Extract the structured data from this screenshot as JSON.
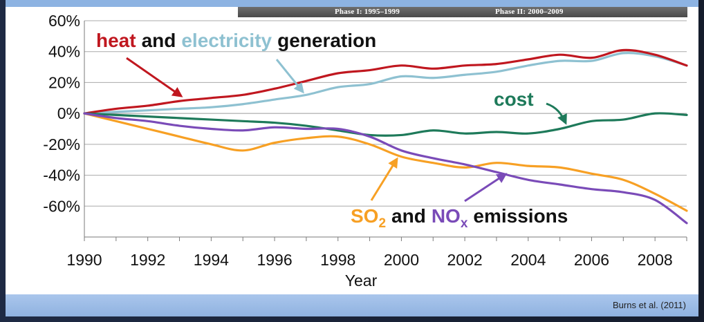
{
  "citation": "Burns et al. (2011)",
  "phases": [
    {
      "label": "Phase I: 1995–1999"
    },
    {
      "label": "Phase II: 2000–2009"
    }
  ],
  "chart_data": {
    "type": "line",
    "title": "",
    "xlabel": "Year",
    "ylabel": "",
    "xlim": [
      1990,
      2009
    ],
    "ylim": [
      -80,
      60
    ],
    "grid": true,
    "x_ticks": [
      1990,
      1992,
      1994,
      1996,
      1998,
      2000,
      2002,
      2004,
      2006,
      2008
    ],
    "x_tick_labels": [
      "1990",
      "1992",
      "1994",
      "1996",
      "1998",
      "2000",
      "2002",
      "2004",
      "2006",
      "2008"
    ],
    "y_ticks": [
      60,
      40,
      20,
      0,
      -20,
      -40,
      -60
    ],
    "y_tick_labels": [
      "60%",
      "40%",
      "20%",
      "0%",
      "-20%",
      "-40%",
      "-60%"
    ],
    "x": [
      1990,
      1991,
      1992,
      1993,
      1994,
      1995,
      1996,
      1997,
      1998,
      1999,
      2000,
      2001,
      2002,
      2003,
      2004,
      2005,
      2006,
      2007,
      2008,
      2009
    ],
    "series": [
      {
        "key": "heat",
        "color": "#c0171f",
        "values": [
          0,
          3,
          5,
          8,
          10,
          12,
          16,
          21,
          26,
          28,
          31,
          29,
          31,
          32,
          35,
          38,
          36,
          41,
          38,
          31
        ]
      },
      {
        "key": "electricity",
        "color": "#8ec1d1",
        "values": [
          0,
          1,
          2,
          3,
          4,
          6,
          9,
          12,
          17,
          19,
          24,
          23,
          25,
          27,
          31,
          34,
          34,
          39,
          37,
          31
        ]
      },
      {
        "key": "cost",
        "color": "#1e7a5a",
        "values": [
          0,
          -1,
          -2,
          -3,
          -4,
          -5,
          -6,
          -8,
          -11,
          -14,
          -14,
          -11,
          -13,
          -12,
          -13,
          -10,
          -5,
          -4,
          0,
          -1
        ]
      },
      {
        "key": "so2",
        "color": "#f7a024",
        "values": [
          0,
          -5,
          -10,
          -15,
          -20,
          -24,
          -19,
          -16,
          -15,
          -20,
          -28,
          -32,
          -35,
          -32,
          -34,
          -35,
          -39,
          -43,
          -52,
          -63
        ]
      },
      {
        "key": "nox",
        "color": "#7a4bb8",
        "values": [
          0,
          -3,
          -5,
          -8,
          -10,
          -11,
          -9,
          -10,
          -10,
          -15,
          -24,
          -29,
          -33,
          -38,
          -43,
          -46,
          -49,
          -51,
          -56,
          -71
        ]
      }
    ],
    "annotations": {
      "heat": "heat",
      "and1": "and",
      "electricity": "electricity",
      "generation": "generation",
      "cost": "cost",
      "so2_main": "SO",
      "so2_sub": "2",
      "and2": "and",
      "nox_main": "NO",
      "nox_sub": "x",
      "emissions": "emissions"
    }
  }
}
